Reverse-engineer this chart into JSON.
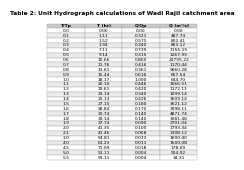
{
  "title": "Table 2: Unit Hydrograph calculations of Wadi Rajil catchment area",
  "columns": [
    "T/Tp",
    "T (hr)",
    "Q/Qp",
    "Q (m³/s)"
  ],
  "rows": [
    [
      "0.0",
      "0.00",
      "0.00",
      "0.00"
    ],
    [
      "0.1",
      "1.11",
      "0.321",
      "487.74"
    ],
    [
      "0.2",
      "1.52",
      "0.575",
      "802.41"
    ],
    [
      "0.3",
      "1.94",
      "0.340",
      "863.12"
    ],
    [
      "0.4",
      "7.11",
      "0.739",
      "1155.15"
    ],
    [
      "0.5",
      "9.14",
      "0.315",
      "1267.99"
    ],
    [
      "0.6",
      "10.66",
      "0.860",
      "24795.22"
    ],
    [
      "0.7",
      "11.76",
      "0.416",
      "1170.44"
    ],
    [
      "0.8",
      "13.61",
      "0.361",
      "9660.28"
    ],
    [
      "0.9",
      "15.44",
      "0.616",
      "667.54"
    ],
    [
      "1.0",
      "18.17",
      "1.000",
      "644.70"
    ],
    [
      "1.1",
      "20.10",
      "0.446",
      "1066.51"
    ],
    [
      "1.2",
      "19.61",
      "0.420",
      "1172.11"
    ],
    [
      "1.3",
      "23.14",
      "0.340",
      "1099.14"
    ],
    [
      "1.4",
      "25.13",
      "0.426",
      "3609.14"
    ],
    [
      "1.5",
      "27.15",
      "0.180",
      "3621.12"
    ],
    [
      "1.6",
      "28.84",
      "0.170",
      "3998.11"
    ],
    [
      "1.7",
      "30.74",
      "0.140",
      "4871.74"
    ],
    [
      "1.8",
      "33.14",
      "0.140",
      "3081.48"
    ],
    [
      "1.9",
      "37.74",
      "0.090",
      "2701.04"
    ],
    [
      "2.0",
      "41.35",
      "0.100",
      "1793.34"
    ],
    [
      "2.1",
      "41.46",
      "0.068",
      "1308.12"
    ],
    [
      "3.0",
      "54.81",
      "0.073",
      "1600.40"
    ],
    [
      "4.0",
      "61.23",
      "0.011",
      "1500.08"
    ],
    [
      "4.5",
      "71.09",
      "0.018",
      "178.09"
    ],
    [
      "5.0",
      "51.11",
      "0.004",
      "904.92"
    ],
    [
      "5.5",
      "91.11",
      "0.004",
      "34.31"
    ]
  ],
  "header_bg": "#c8c8c8",
  "row_bg_odd": "#ebebeb",
  "row_bg_even": "#ffffff",
  "font_size": 3.2,
  "title_font_size": 4.2,
  "edge_color": "#aaaaaa",
  "line_width": 0.3
}
